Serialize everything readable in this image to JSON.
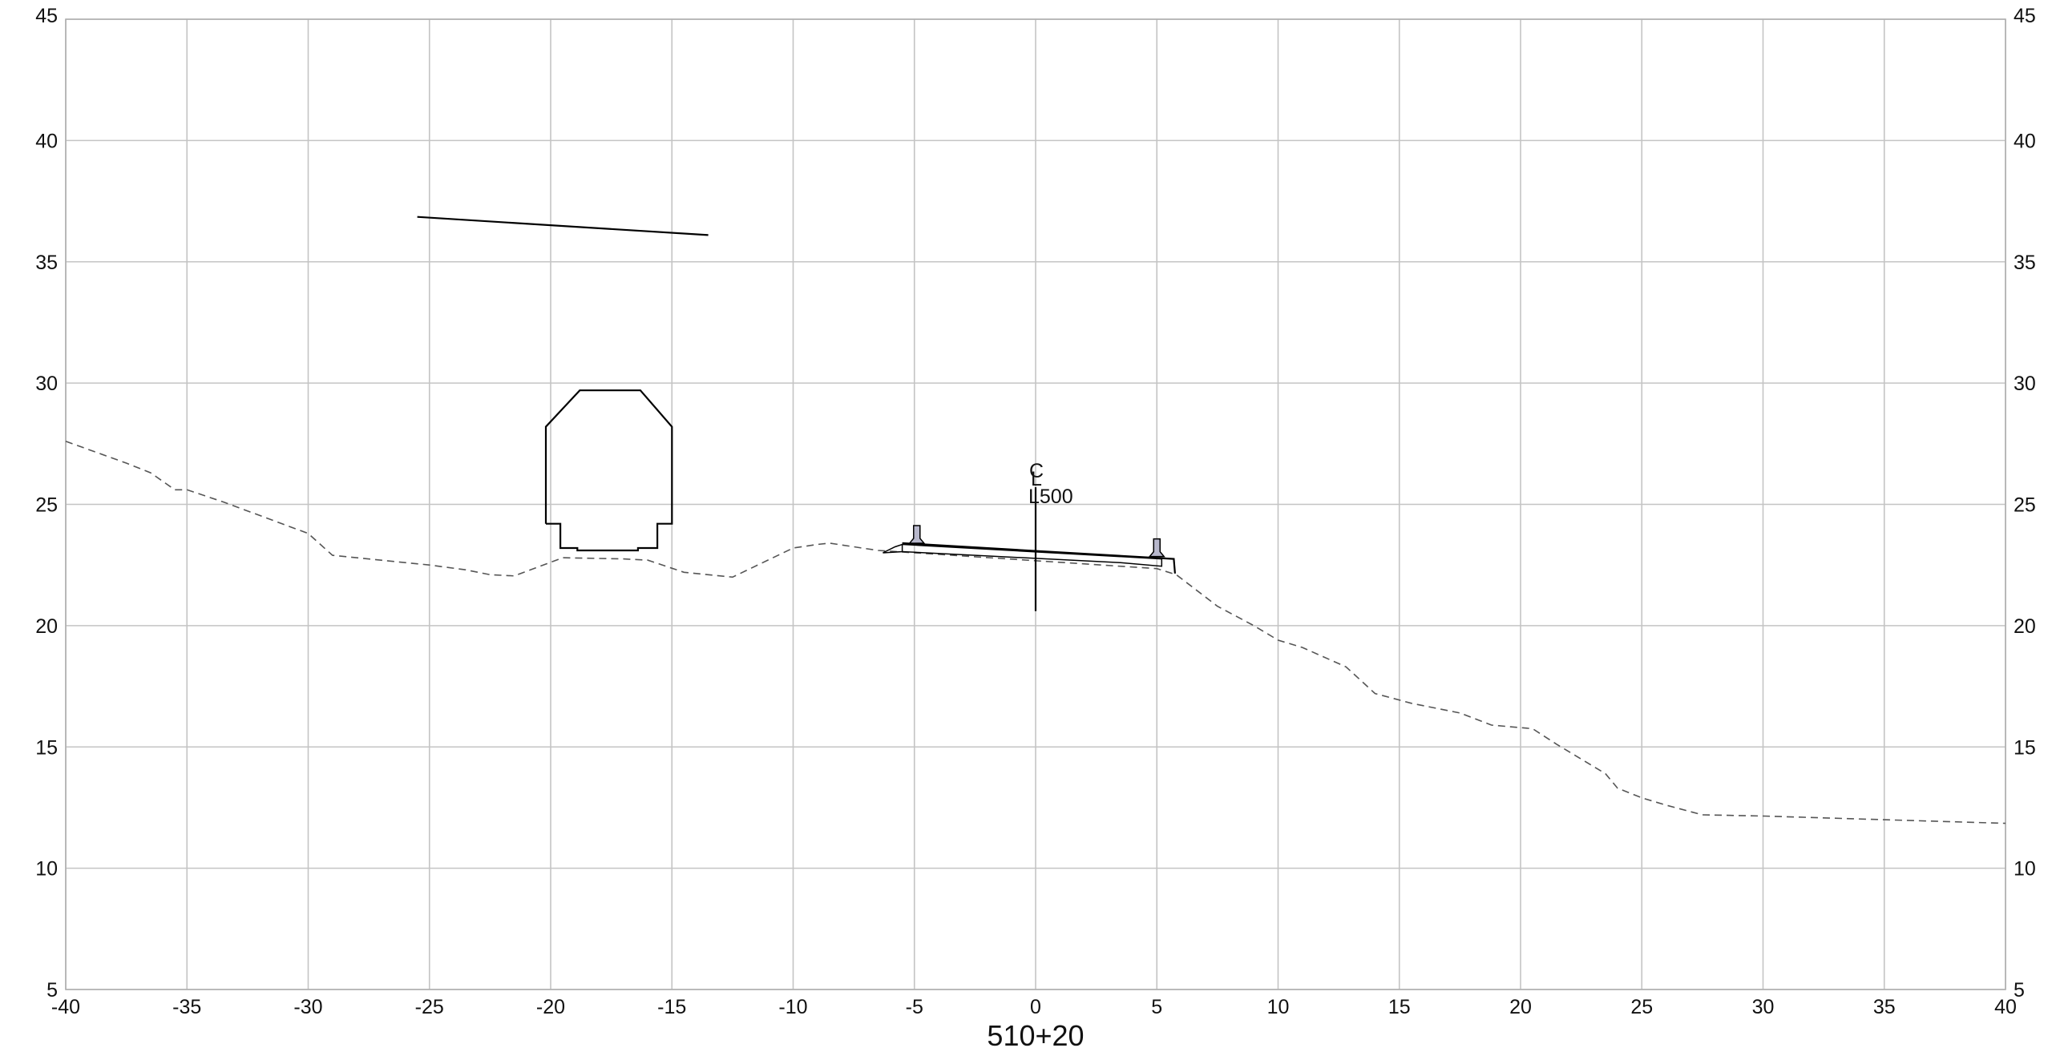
{
  "chart_data": {
    "type": "line",
    "station_label": "510+20",
    "centerline": {
      "symbol_top": "C",
      "symbol_bottom": "L",
      "label": "L500",
      "x": 0,
      "y_top": 26.5,
      "y_bottom": 20.6
    },
    "xlim": [
      -40,
      40
    ],
    "ylim": [
      5,
      45
    ],
    "x_ticks": [
      -40,
      -35,
      -30,
      -25,
      -20,
      -15,
      -10,
      -5,
      0,
      5,
      10,
      15,
      20,
      25,
      30,
      35,
      40
    ],
    "y_ticks": [
      5,
      10,
      15,
      20,
      25,
      30,
      35,
      40,
      45
    ],
    "x_tick_labels": [
      "-40",
      "-35",
      "-30",
      "-25",
      "-20",
      "-15",
      "-10",
      "-5",
      "0",
      "5",
      "10",
      "15",
      "20",
      "25",
      "30",
      "35",
      "40"
    ],
    "y_tick_labels": [
      "5",
      "10",
      "15",
      "20",
      "25",
      "30",
      "35",
      "40",
      "45"
    ],
    "grid": true,
    "series": [
      {
        "style": "dashed",
        "points": [
          [
            -40,
            27.6
          ],
          [
            -37.5,
            26.7
          ],
          [
            -36.5,
            26.3
          ],
          [
            -35.5,
            25.6
          ],
          [
            -35,
            25.6
          ],
          [
            -33.5,
            25.1
          ],
          [
            -30,
            23.8
          ],
          [
            -29,
            22.9
          ],
          [
            -25,
            22.5
          ],
          [
            -23.5,
            22.3
          ],
          [
            -22.5,
            22.1
          ],
          [
            -21.5,
            22.05
          ],
          [
            -19.5,
            22.8
          ],
          [
            -17,
            22.75
          ],
          [
            -16,
            22.7
          ],
          [
            -14.5,
            22.2
          ],
          [
            -13,
            22.05
          ],
          [
            -12.5,
            22.0
          ],
          [
            -10,
            23.2
          ],
          [
            -9,
            23.35
          ],
          [
            -8.5,
            23.4
          ],
          [
            -6.5,
            23.1
          ],
          [
            5,
            22.35
          ],
          [
            5.8,
            22.1
          ],
          [
            7.5,
            20.8
          ],
          [
            9,
            20.0
          ],
          [
            10,
            19.4
          ],
          [
            11,
            19.1
          ],
          [
            12.8,
            18.3
          ],
          [
            14,
            17.2
          ],
          [
            15.5,
            16.8
          ],
          [
            17.5,
            16.4
          ],
          [
            18.8,
            15.9
          ],
          [
            20.5,
            15.75
          ],
          [
            21.5,
            15.1
          ],
          [
            22.5,
            14.5
          ],
          [
            23.5,
            13.9
          ],
          [
            24,
            13.3
          ],
          [
            25,
            12.9
          ],
          [
            26,
            12.6
          ],
          [
            27.5,
            12.2
          ],
          [
            30,
            12.15
          ],
          [
            35,
            12.0
          ],
          [
            40,
            11.85
          ]
        ]
      },
      {
        "style": "solid",
        "points": [
          [
            -25.5,
            36.85
          ],
          [
            -13.5,
            36.1
          ]
        ]
      },
      {
        "style": "solid",
        "points": [
          [
            -20.2,
            24.2
          ],
          [
            -20.2,
            28.2
          ],
          [
            -18.8,
            29.7
          ],
          [
            -16.3,
            29.7
          ],
          [
            -15,
            28.2
          ],
          [
            -15,
            24.2
          ],
          [
            -15.6,
            24.2
          ],
          [
            -15.6,
            23.2
          ],
          [
            -16.4,
            23.2
          ],
          [
            -16.4,
            23.1
          ],
          [
            -18.9,
            23.1
          ],
          [
            -18.9,
            23.2
          ],
          [
            -19.6,
            23.2
          ],
          [
            -19.6,
            24.2
          ],
          [
            -20.2,
            24.2
          ]
        ]
      },
      {
        "style": "solid",
        "points": [
          [
            -5.5,
            23.4
          ],
          [
            5.7,
            22.75
          ],
          [
            5.75,
            22.15
          ]
        ]
      },
      {
        "style": "thin",
        "points": [
          [
            -6.3,
            23.0
          ],
          [
            -5.8,
            23.25
          ],
          [
            -5.5,
            23.35
          ],
          [
            -5.5,
            23.05
          ],
          [
            -6.3,
            23.0
          ]
        ]
      },
      {
        "style": "thin",
        "points": [
          [
            -5.5,
            23.05
          ],
          [
            3.5,
            22.6
          ],
          [
            5.2,
            22.45
          ],
          [
            5.2,
            22.75
          ]
        ]
      },
      {
        "style": "thin",
        "points": [
          [
            -5.5,
            23.35
          ],
          [
            5.2,
            22.75
          ]
        ]
      }
    ],
    "markers": [
      {
        "type": "rail",
        "x": -4.9,
        "y": 23.4
      },
      {
        "type": "rail",
        "x": 5.0,
        "y": 22.85
      }
    ]
  }
}
